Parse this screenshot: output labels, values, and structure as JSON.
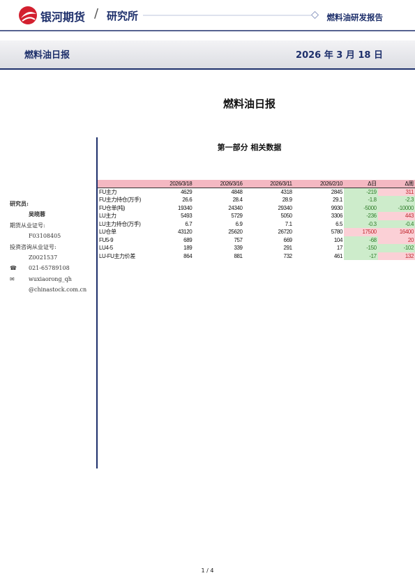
{
  "header": {
    "brand": "银河期货",
    "separator": "/",
    "dept": "研究所",
    "report_type": "燃料油研发报告"
  },
  "banner": {
    "title": "燃料油日报",
    "date": "2026 年 3 月 18 日"
  },
  "title": "燃料油日报",
  "sidebar": {
    "researcher_label": "研究员:",
    "researcher": "吴晓蓉",
    "futures_license_label": "期货从业证号:",
    "futures_license": "F03108405",
    "advisory_license_label": "投资咨询从业证号:",
    "advisory_license": "Z0021537",
    "phone_icon": "☎",
    "phone": "021-65789108",
    "email_icon": "✉",
    "email_lines": [
      "wuxiaorong_qh",
      "@chinastock.com.cn"
    ]
  },
  "section_title": "第一部分 相关数据",
  "table": {
    "columns": [
      "2026/3/18",
      "2026/3/16",
      "2026/3/11",
      "2026/2/10",
      "Δ日",
      "Δ周"
    ],
    "rows": [
      [
        "FU主力",
        4629,
        4848,
        4318,
        2845,
        -219,
        311
      ],
      [
        "FU主力持仓(万手)",
        26.6,
        28.4,
        28.9,
        29.1,
        -1.8,
        -2.3
      ],
      [
        "FU仓单(吨)",
        19340,
        24340,
        29340,
        9930,
        -5000,
        -10000
      ],
      [
        "LU主力",
        5493,
        5729,
        5050,
        3306,
        -236,
        443
      ],
      [
        "LU主力持仓(万手)",
        6.7,
        6.9,
        7.1,
        6.5,
        -0.3,
        -0.4
      ],
      [
        "LU仓单",
        43120,
        25620,
        26720,
        5780,
        17500,
        16400
      ],
      [
        "FU5-9",
        689,
        757,
        669,
        104,
        -68,
        20
      ],
      [
        "LU4-5",
        189,
        339,
        291,
        17,
        -150,
        -102
      ],
      [
        "LU-FU主力价差",
        864,
        881,
        732,
        461,
        -17,
        132
      ]
    ]
  },
  "footer": {
    "page": "1 / 4"
  }
}
